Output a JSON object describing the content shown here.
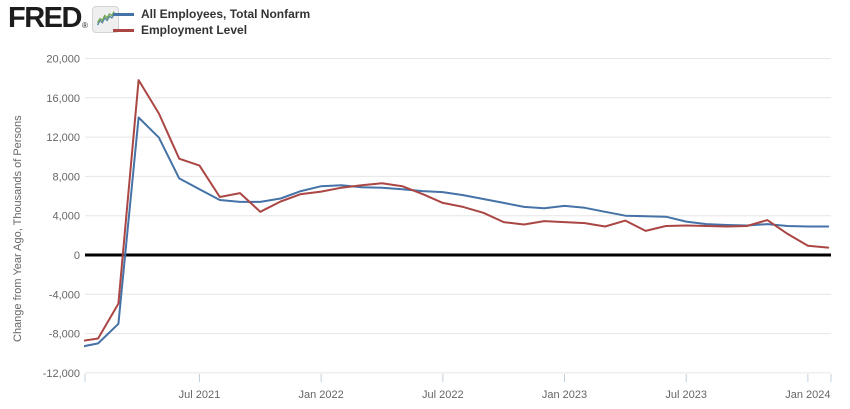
{
  "header": {
    "logo_text": "FRED",
    "logo_registered": "®",
    "legend": [
      {
        "label": "All Employees, Total Nonfarm",
        "color": "#4572a7"
      },
      {
        "label": "Employment Level",
        "color": "#aa4643"
      }
    ]
  },
  "chart_data": {
    "type": "line",
    "title": "",
    "xlabel": "",
    "ylabel": "Change from Year Ago, Thousands of Persons",
    "ylim": [
      -12000,
      20000
    ],
    "y_ticks": [
      20000,
      16000,
      12000,
      8000,
      4000,
      0,
      -4000,
      -8000,
      -12000
    ],
    "y_tick_labels": [
      "20,000",
      "16,000",
      "12,000",
      "8,000",
      "4,000",
      "0",
      "-4,000",
      "-8,000",
      "-12,000"
    ],
    "grid": "horizontal",
    "zero_line": true,
    "legend_position": "top-left",
    "x": [
      "2021-01",
      "2021-02",
      "2021-03",
      "2021-04",
      "2021-05",
      "2021-06",
      "2021-07",
      "2021-08",
      "2021-09",
      "2021-10",
      "2021-11",
      "2021-12",
      "2022-01",
      "2022-02",
      "2022-03",
      "2022-04",
      "2022-05",
      "2022-06",
      "2022-07",
      "2022-08",
      "2022-09",
      "2022-10",
      "2022-11",
      "2022-12",
      "2023-01",
      "2023-02",
      "2023-03",
      "2023-04",
      "2023-05",
      "2023-06",
      "2023-07",
      "2023-08",
      "2023-09",
      "2023-10",
      "2023-11",
      "2023-12",
      "2024-01",
      "2024-02"
    ],
    "x_tick_labels": [
      {
        "index": 6,
        "label": "Jul 2021"
      },
      {
        "index": 12,
        "label": "Jan 2022"
      },
      {
        "index": 18,
        "label": "Jul 2022"
      },
      {
        "index": 24,
        "label": "Jan 2023"
      },
      {
        "index": 30,
        "label": "Jul 2023"
      },
      {
        "index": 36,
        "label": "Jan 2024"
      }
    ],
    "series": [
      {
        "name": "All Employees, Total Nonfarm",
        "color": "#4572a7",
        "values": [
          -9400,
          -9000,
          -7000,
          14000,
          11950,
          7800,
          6700,
          5600,
          5400,
          5400,
          5750,
          6500,
          7000,
          7100,
          6900,
          6850,
          6700,
          6500,
          6400,
          6100,
          5700,
          5300,
          4900,
          4750,
          5000,
          4800,
          4400,
          4000,
          3950,
          3900,
          3400,
          3150,
          3050,
          3000,
          3150,
          2950,
          2900,
          2900
        ]
      },
      {
        "name": "Employment Level",
        "color": "#aa4643",
        "values": [
          -8800,
          -8500,
          -4950,
          17800,
          14400,
          9800,
          9100,
          5900,
          6300,
          4400,
          5450,
          6200,
          6450,
          6850,
          7100,
          7300,
          7000,
          6200,
          5300,
          4900,
          4300,
          3350,
          3100,
          3450,
          3350,
          3250,
          2900,
          3500,
          2450,
          2950,
          3000,
          2950,
          2900,
          2950,
          3550,
          2150,
          950,
          750
        ]
      }
    ]
  }
}
